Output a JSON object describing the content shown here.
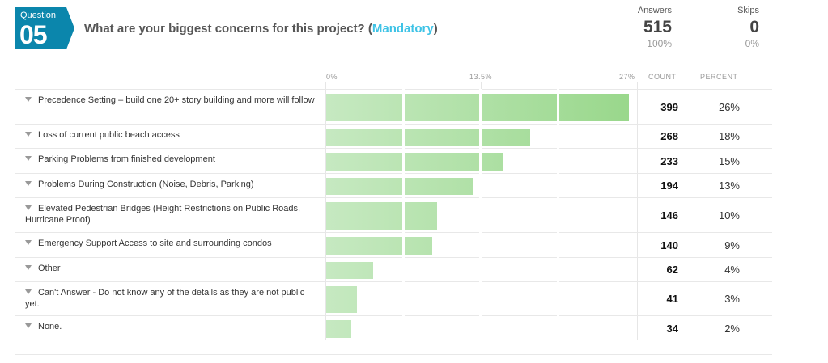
{
  "question": {
    "label": "Question",
    "number": "05",
    "title": "What are your biggest concerns for this project? (",
    "mandatory": "Mandatory",
    "close": ")"
  },
  "answers": {
    "label": "Answers",
    "value": "515",
    "percent": "100%"
  },
  "skips": {
    "label": "Skips",
    "value": "0",
    "percent": "0%"
  },
  "columns": {
    "count": "COUNT",
    "percent": "PERCENT"
  },
  "chart_data": {
    "type": "bar",
    "orientation": "horizontal",
    "xlim": [
      0,
      27
    ],
    "ticks": [
      "0%",
      "13.5%",
      "27%"
    ],
    "categories": [
      "Precedence Setting – build one 20+ story building and more will follow",
      "Loss of current public beach access",
      "Parking Problems from finished development",
      "Problems During Construction (Noise, Debris, Parking)",
      "Elevated Pedestrian Bridges (Height Restrictions on Public Roads, Hurricane Proof)",
      "Emergency Support Access to site and surrounding condos",
      "Other",
      "Can't Answer - Do not know any of the details as they are not public yet.",
      "None."
    ],
    "counts": [
      399,
      268,
      233,
      194,
      146,
      140,
      62,
      41,
      34
    ],
    "percents": [
      "26%",
      "18%",
      "15%",
      "13%",
      "10%",
      "9%",
      "4%",
      "3%",
      "2%"
    ],
    "values": [
      26.3,
      17.7,
      15.4,
      12.8,
      9.6,
      9.2,
      4.1,
      2.7,
      2.2
    ],
    "colors": [
      "#c6e9c1",
      "#98d78a"
    ]
  }
}
